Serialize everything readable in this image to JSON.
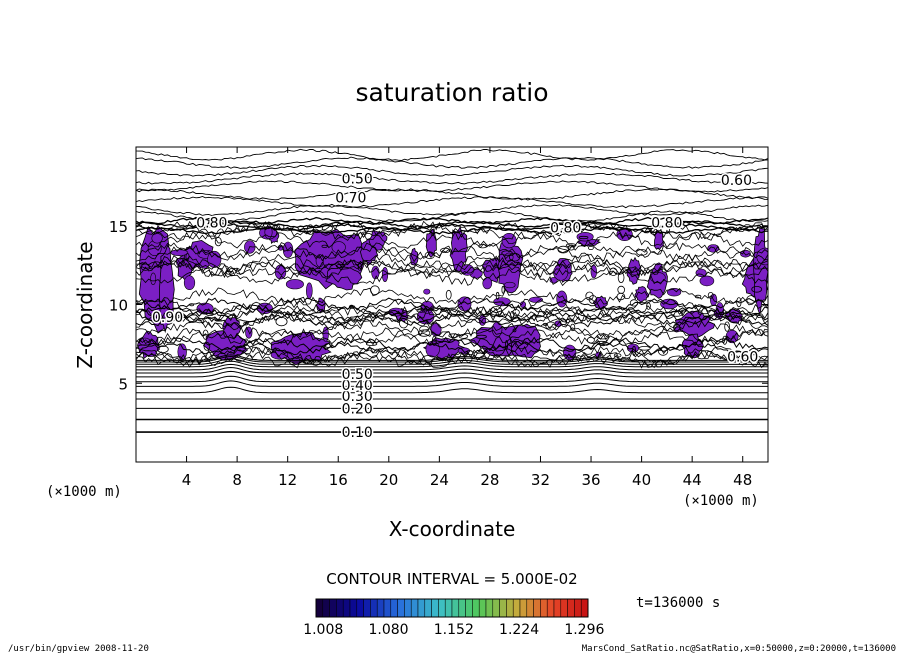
{
  "chart_data": {
    "type": "contour",
    "title": "saturation ratio",
    "xlabel": "X-coordinate",
    "ylabel": "Z-coordinate",
    "x_unit": "(×1000 m)",
    "z_unit": "(×1000 m)",
    "xlim": [
      0,
      50
    ],
    "ylim": [
      0,
      20
    ],
    "x_ticks": [
      4,
      8,
      12,
      16,
      20,
      24,
      28,
      32,
      36,
      40,
      44,
      48
    ],
    "y_ticks": [
      5,
      10,
      15
    ],
    "contour_interval_text": "CONTOUR INTERVAL = 5.000E-02",
    "time_text": "t=136000 s",
    "colorbar_ticks": [
      "1.008",
      "1.080",
      "1.152",
      "1.224",
      "1.296"
    ],
    "colorbar_range": [
      1.0,
      1.3
    ],
    "contour_labels": [
      {
        "text": "0.10",
        "x": 17.5,
        "z": 1.9
      },
      {
        "text": "0.20",
        "x": 17.5,
        "z": 3.4
      },
      {
        "text": "0.30",
        "x": 17.5,
        "z": 4.2
      },
      {
        "text": "0.40",
        "x": 17.5,
        "z": 4.9
      },
      {
        "text": "0.50",
        "x": 17.5,
        "z": 5.6
      },
      {
        "text": "0.50",
        "x": 17.5,
        "z": 18.0
      },
      {
        "text": "0.60",
        "x": 47.5,
        "z": 17.9
      },
      {
        "text": "0.70",
        "x": 17.0,
        "z": 16.8
      },
      {
        "text": "0.80",
        "x": 6.0,
        "z": 15.2
      },
      {
        "text": "0.80",
        "x": 34.0,
        "z": 14.9
      },
      {
        "text": "0.80",
        "x": 42.0,
        "z": 15.2
      },
      {
        "text": "0.90",
        "x": 2.5,
        "z": 9.2
      },
      {
        "text": "0.60",
        "x": 48.0,
        "z": 6.7
      }
    ],
    "supersaturated_regions_color": "#7b1fc4"
  },
  "footer": {
    "left": "/usr/bin/gpview  2008-11-20",
    "right": "MarsCond_SatRatio.nc@SatRatio,x=0:50000,z=0:20000,t=136000"
  }
}
